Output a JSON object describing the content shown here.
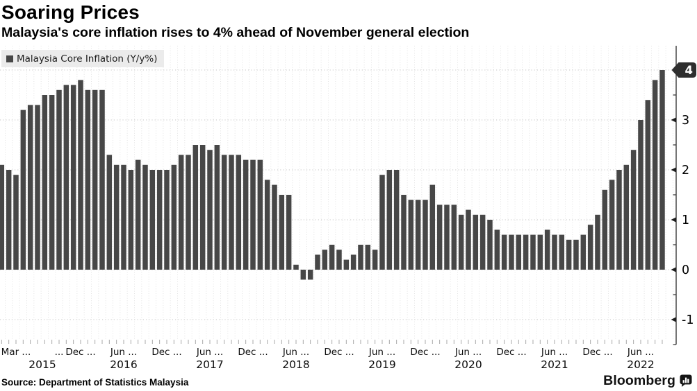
{
  "header": {
    "title": "Soaring Prices",
    "subtitle": "Malaysia's core inflation rises to 4% ahead of November general election"
  },
  "legend": {
    "label": "Malaysia Core Inflation (Y/y%)",
    "swatch_color": "#474747"
  },
  "footer": {
    "source": "Source: Department of Statistics Malaysia",
    "brand": "Bloomberg"
  },
  "colors": {
    "bar": "#474747",
    "axis_line": "#3c3c3c",
    "horizontal_grid": "#c6c6c6",
    "vertical_grid": "#e3e3e3",
    "legend_background": "#ebebeb",
    "badge_background": "#2e2e2e",
    "badge_text": "#ffffff",
    "label_text": "#000000"
  },
  "chart_data": {
    "type": "bar",
    "title": "Soaring Prices",
    "subtitle": "Malaysia's core inflation rises to 4% ahead of November general election",
    "series_name": "Malaysia Core Inflation (Y/y%)",
    "unit": "percent year-on-year",
    "frequency": "monthly",
    "start_month": "2015-01",
    "end_month": "2022-09",
    "values_by_year": {
      "2015": [
        2.1,
        2.0,
        1.9,
        3.2,
        3.3,
        3.3,
        3.5,
        3.5,
        3.6,
        3.7,
        3.7,
        3.8
      ],
      "2016": [
        3.6,
        3.6,
        3.6,
        2.3,
        2.1,
        2.1,
        2.0,
        2.2,
        2.1,
        2.0,
        2.0,
        2.0
      ],
      "2017": [
        2.1,
        2.3,
        2.3,
        2.5,
        2.5,
        2.4,
        2.5,
        2.3,
        2.3,
        2.3,
        2.2,
        2.2
      ],
      "2018": [
        2.2,
        1.8,
        1.7,
        1.5,
        1.5,
        0.1,
        -0.2,
        -0.2,
        0.3,
        0.4,
        0.5,
        0.4
      ],
      "2019": [
        0.2,
        0.3,
        0.5,
        0.5,
        0.4,
        1.9,
        2.0,
        2.0,
        1.5,
        1.4,
        1.4,
        1.4
      ],
      "2020": [
        1.7,
        1.3,
        1.3,
        1.3,
        1.1,
        1.2,
        1.1,
        1.1,
        1.0,
        0.8,
        0.7,
        0.7
      ],
      "2021": [
        0.7,
        0.7,
        0.7,
        0.7,
        0.8,
        0.7,
        0.7,
        0.6,
        0.6,
        0.7,
        0.9,
        1.1
      ],
      "2022": [
        1.6,
        1.8,
        2.0,
        2.1,
        2.4,
        3.0,
        3.4,
        3.8,
        4.0
      ]
    },
    "year_labels": [
      "2015",
      "2016",
      "2017",
      "2018",
      "2019",
      "2020",
      "2021",
      "2022"
    ],
    "x_tick_labels": [
      {
        "label": "Mar ...",
        "month_index": 2
      },
      {
        "label": "...",
        "month_index": 8
      },
      {
        "label": "Dec ...",
        "month_index": 11
      },
      {
        "label": "Jun ...",
        "month_index": 17
      },
      {
        "label": "Dec ...",
        "month_index": 23
      },
      {
        "label": "Jun ...",
        "month_index": 29
      },
      {
        "label": "Dec ...",
        "month_index": 35
      },
      {
        "label": "Jun ...",
        "month_index": 41
      },
      {
        "label": "Dec ...",
        "month_index": 47
      },
      {
        "label": "Jun ...",
        "month_index": 53
      },
      {
        "label": "Dec ...",
        "month_index": 59
      },
      {
        "label": "Jun ...",
        "month_index": 65
      },
      {
        "label": "Dec ...",
        "month_index": 71
      },
      {
        "label": "Jun ...",
        "month_index": 77
      },
      {
        "label": "Dec ...",
        "month_index": 83
      },
      {
        "label": "Jun ...",
        "month_index": 89
      }
    ],
    "y_axis": {
      "side": "right",
      "ticks": [
        -1,
        0,
        1,
        2,
        3
      ],
      "minor_tick_step": 0.5,
      "highlight": {
        "value": 4,
        "label": "4"
      }
    },
    "ylim": [
      -1.5,
      4.5
    ],
    "grid": "dotted",
    "legend_position": "top-left",
    "bar_color": "#474747"
  }
}
